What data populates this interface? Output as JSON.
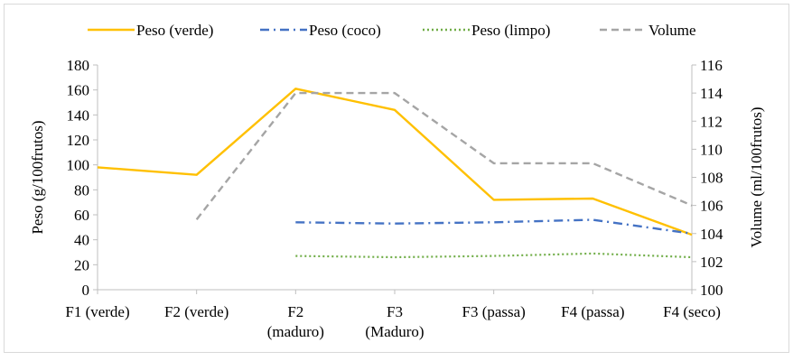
{
  "chart_data": {
    "type": "line",
    "categories": [
      "F1 (verde)",
      "F2 (verde)",
      "F2\n(maduro)",
      "F3\n(Maduro)",
      "F3 (passa)",
      "F4 (passa)",
      "F4 (seco)"
    ],
    "ylabel": "Peso (g/100frutos)",
    "y2label": "Volume (ml/100frutos)",
    "ylim": [
      0,
      180
    ],
    "yticks": [
      0,
      20,
      40,
      60,
      80,
      100,
      120,
      140,
      160,
      180
    ],
    "y2lim": [
      100,
      116
    ],
    "y2ticks": [
      100,
      102,
      104,
      106,
      108,
      110,
      112,
      114,
      116
    ],
    "legend_position": "top",
    "series": [
      {
        "name": "Peso (verde)",
        "axis": "left",
        "color": "#FFC000",
        "dash": "solid",
        "values": [
          98,
          92,
          161,
          144,
          72,
          73,
          44
        ]
      },
      {
        "name": "Peso (coco)",
        "axis": "left",
        "color": "#4472C4",
        "dash": "dashdot",
        "values": [
          null,
          null,
          54,
          53,
          54,
          56,
          45
        ]
      },
      {
        "name": "Peso (limpo)",
        "axis": "left",
        "color": "#70AD47",
        "dash": "dotted",
        "values": [
          null,
          null,
          27,
          26,
          27,
          29,
          26
        ]
      },
      {
        "name": "Volume",
        "axis": "right",
        "color": "#A5A5A5",
        "dash": "dashed",
        "values": [
          null,
          105,
          114,
          114,
          109,
          109,
          106
        ]
      }
    ]
  }
}
